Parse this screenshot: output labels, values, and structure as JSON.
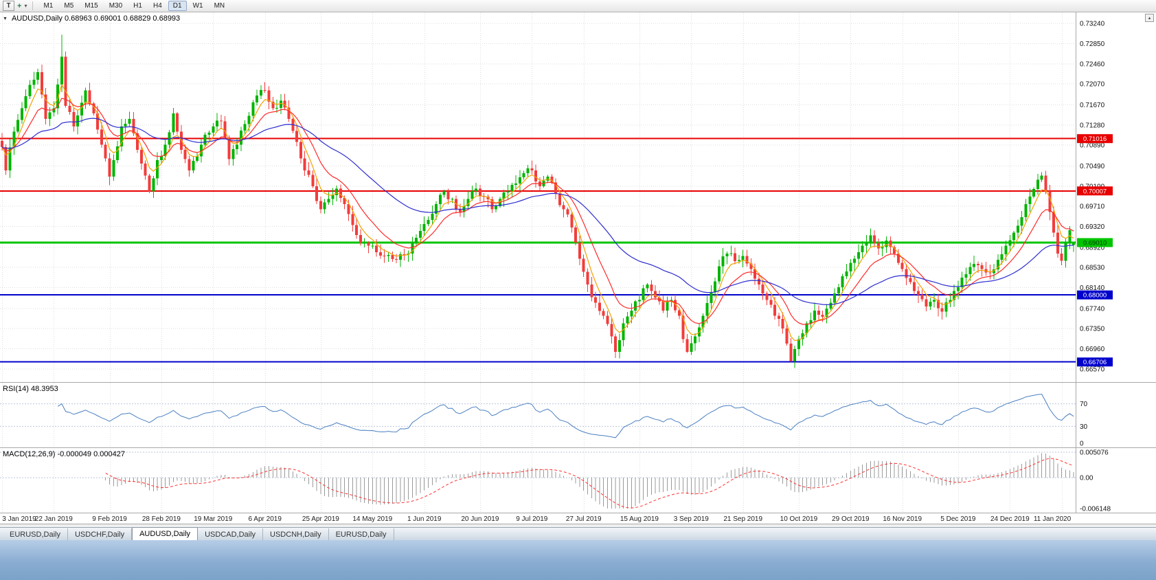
{
  "icons": {
    "collapse": "▼",
    "scroll_up": "▴",
    "caret_down": "▾",
    "crosshair": "+",
    "template": "T"
  },
  "toolbar": {
    "timeframes": [
      "M1",
      "M5",
      "M15",
      "M30",
      "H1",
      "H4",
      "D1",
      "W1",
      "MN"
    ],
    "active_timeframe": "D1"
  },
  "chart": {
    "symbol": "AUDUSD",
    "period": "Daily",
    "title": "AUDUSD,Daily 0.68963 0.69001 0.68829 0.68993"
  },
  "price_axis": {
    "ticks": [
      "0.73240",
      "0.72850",
      "0.72460",
      "0.72070",
      "0.71670",
      "0.71280",
      "0.70890",
      "0.70490",
      "0.70100",
      "0.69710",
      "0.69320",
      "0.68920",
      "0.68530",
      "0.68140",
      "0.67740",
      "0.67350",
      "0.66960",
      "0.66570"
    ]
  },
  "hlines": [
    {
      "price": 0.71016,
      "label": "0.71016",
      "color": "#e80000",
      "text_color": "#ffffff",
      "width": 2
    },
    {
      "price": 0.70007,
      "label": "0.70007",
      "color": "#e80000",
      "text_color": "#ffffff",
      "width": 2
    },
    {
      "price": 0.6901,
      "label": "0.69010",
      "color": "#00c400",
      "text_color": "#063306",
      "width": 3
    },
    {
      "price": 0.68,
      "label": "0.68000",
      "color": "#0000cc",
      "text_color": "#ffffff",
      "width": 2
    },
    {
      "price": 0.66706,
      "label": "0.66706",
      "color": "#0000cc",
      "text_color": "#ffffff",
      "width": 2
    }
  ],
  "indicators": {
    "rsi": {
      "label": "RSI(14) 48.3953",
      "period": 14,
      "value": 48.3953,
      "levels": [
        "70",
        "30",
        "0"
      ]
    },
    "macd": {
      "label": "MACD(12,26,9) -0.000049 0.000427",
      "fast": 12,
      "slow": 26,
      "signal": 9,
      "macd_value": -4.9e-05,
      "signal_value": 0.000427,
      "axis_labels": [
        "0.005076",
        "0.00",
        "-0.006148"
      ]
    }
  },
  "date_axis": {
    "labels": [
      "3 Jan 2019",
      "22 Jan 2019",
      "9 Feb 2019",
      "28 Feb 2019",
      "19 Mar 2019",
      "6 Apr 2019",
      "25 Apr 2019",
      "14 May 2019",
      "1 Jun 2019",
      "20 Jun 2019",
      "9 Jul 2019",
      "27 Jul 2019",
      "15 Aug 2019",
      "3 Sep 2019",
      "21 Sep 2019",
      "10 Oct 2019",
      "29 Oct 2019",
      "16 Nov 2019",
      "5 Dec 2019",
      "24 Dec 2019",
      "11 Jan 2020"
    ]
  },
  "tabs": {
    "items": [
      "EURUSD,Daily",
      "USDCHF,Daily",
      "AUDUSD,Daily",
      "USDCAD,Daily",
      "USDCNH,Daily",
      "EURUSD,Daily"
    ],
    "active_index": 2
  },
  "chart_data": {
    "type": "candlestick",
    "symbol": "AUDUSD",
    "timeframe": "Daily",
    "title": "AUDUSD,Daily",
    "num_candles": 270,
    "price_scale": {
      "top": 0.7324,
      "bottom": 0.6657
    },
    "macd_scale": {
      "max": 0.005076,
      "min": -0.006148
    },
    "x_tick_indices": [
      0,
      13,
      27,
      40,
      53,
      66,
      80,
      93,
      106,
      120,
      133,
      146,
      160,
      173,
      186,
      200,
      213,
      226,
      240,
      253,
      266
    ],
    "close_keypoints": [
      [
        0,
        0.7085
      ],
      [
        1,
        0.704
      ],
      [
        3,
        0.7115
      ],
      [
        5,
        0.716
      ],
      [
        7,
        0.7205
      ],
      [
        9,
        0.723
      ],
      [
        11,
        0.714
      ],
      [
        13,
        0.716
      ],
      [
        15,
        0.726
      ],
      [
        16,
        0.7165
      ],
      [
        18,
        0.7125
      ],
      [
        21,
        0.7195
      ],
      [
        23,
        0.715
      ],
      [
        25,
        0.709
      ],
      [
        27,
        0.7028
      ],
      [
        28,
        0.706
      ],
      [
        30,
        0.7125
      ],
      [
        32,
        0.714
      ],
      [
        34,
        0.708
      ],
      [
        36,
        0.703
      ],
      [
        37,
        0.7
      ],
      [
        39,
        0.706
      ],
      [
        41,
        0.709
      ],
      [
        43,
        0.715
      ],
      [
        45,
        0.708
      ],
      [
        47,
        0.704
      ],
      [
        50,
        0.709
      ],
      [
        53,
        0.7125
      ],
      [
        55,
        0.7135
      ],
      [
        57,
        0.7062
      ],
      [
        59,
        0.709
      ],
      [
        61,
        0.713
      ],
      [
        64,
        0.7185
      ],
      [
        66,
        0.7195
      ],
      [
        68,
        0.716
      ],
      [
        70,
        0.7175
      ],
      [
        72,
        0.714
      ],
      [
        74,
        0.7095
      ],
      [
        76,
        0.704
      ],
      [
        78,
        0.701
      ],
      [
        80,
        0.6965
      ],
      [
        82,
        0.6985
      ],
      [
        84,
        0.7005
      ],
      [
        86,
        0.6975
      ],
      [
        88,
        0.6935
      ],
      [
        90,
        0.69
      ],
      [
        93,
        0.6895
      ],
      [
        96,
        0.6875
      ],
      [
        99,
        0.6868
      ],
      [
        102,
        0.688
      ],
      [
        104,
        0.691
      ],
      [
        107,
        0.6945
      ],
      [
        109,
        0.6975
      ],
      [
        111,
        0.7
      ],
      [
        113,
        0.6985
      ],
      [
        115,
        0.696
      ],
      [
        117,
        0.6985
      ],
      [
        119,
        0.7005
      ],
      [
        121,
        0.699
      ],
      [
        123,
        0.6965
      ],
      [
        125,
        0.6985
      ],
      [
        127,
        0.7
      ],
      [
        129,
        0.7015
      ],
      [
        131,
        0.7035
      ],
      [
        133,
        0.704
      ],
      [
        135,
        0.701
      ],
      [
        137,
        0.7028
      ],
      [
        139,
        0.6995
      ],
      [
        141,
        0.6965
      ],
      [
        143,
        0.693
      ],
      [
        145,
        0.687
      ],
      [
        147,
        0.682
      ],
      [
        149,
        0.6785
      ],
      [
        151,
        0.676
      ],
      [
        153,
        0.672
      ],
      [
        154,
        0.669
      ],
      [
        156,
        0.6745
      ],
      [
        158,
        0.677
      ],
      [
        160,
        0.679
      ],
      [
        162,
        0.682
      ],
      [
        164,
        0.6795
      ],
      [
        166,
        0.677
      ],
      [
        168,
        0.679
      ],
      [
        170,
        0.676
      ],
      [
        171,
        0.6715
      ],
      [
        172,
        0.669
      ],
      [
        174,
        0.672
      ],
      [
        176,
        0.676
      ],
      [
        178,
        0.6805
      ],
      [
        180,
        0.6855
      ],
      [
        182,
        0.688
      ],
      [
        184,
        0.6865
      ],
      [
        186,
        0.6875
      ],
      [
        188,
        0.685
      ],
      [
        190,
        0.682
      ],
      [
        192,
        0.679
      ],
      [
        194,
        0.676
      ],
      [
        196,
        0.6735
      ],
      [
        198,
        0.6672
      ],
      [
        200,
        0.6715
      ],
      [
        202,
        0.6745
      ],
      [
        204,
        0.677
      ],
      [
        206,
        0.6758
      ],
      [
        208,
        0.6785
      ],
      [
        210,
        0.6815
      ],
      [
        212,
        0.6845
      ],
      [
        214,
        0.687
      ],
      [
        216,
        0.6895
      ],
      [
        218,
        0.6915
      ],
      [
        220,
        0.689
      ],
      [
        222,
        0.6905
      ],
      [
        224,
        0.688
      ],
      [
        226,
        0.685
      ],
      [
        228,
        0.6825
      ],
      [
        230,
        0.68
      ],
      [
        232,
        0.6778
      ],
      [
        234,
        0.679
      ],
      [
        236,
        0.6768
      ],
      [
        238,
        0.679
      ],
      [
        240,
        0.6815
      ],
      [
        242,
        0.684
      ],
      [
        244,
        0.686
      ],
      [
        246,
        0.685
      ],
      [
        248,
        0.6842
      ],
      [
        250,
        0.6868
      ],
      [
        252,
        0.6895
      ],
      [
        254,
        0.692
      ],
      [
        256,
        0.695
      ],
      [
        258,
        0.699
      ],
      [
        260,
        0.7022
      ],
      [
        261,
        0.703
      ],
      [
        262,
        0.7
      ],
      [
        263,
        0.696
      ],
      [
        264,
        0.692
      ],
      [
        265,
        0.688
      ],
      [
        266,
        0.6866
      ],
      [
        267,
        0.69
      ],
      [
        268,
        0.6925
      ],
      [
        269,
        0.68993
      ]
    ],
    "wick_overrides": {
      "15": {
        "high": 0.7302
      },
      "99": {
        "low": 0.6861
      },
      "154": {
        "low": 0.6678
      },
      "172": {
        "low": 0.6688
      },
      "198": {
        "low": 0.66706
      },
      "261": {
        "high": 0.7037
      }
    },
    "last_candle": {
      "open": 0.68963,
      "high": 0.69001,
      "low": 0.68829,
      "close": 0.68993
    },
    "moving_averages": [
      {
        "name": "fast",
        "period": 5,
        "color": "#f2a200"
      },
      {
        "name": "medium",
        "period": 12,
        "color": "#ff2a2a"
      },
      {
        "name": "slow",
        "period": 40,
        "color": "#2d2dd0"
      }
    ],
    "colors": {
      "up": "#00b400",
      "down": "#f23c3c",
      "rsi": "#4a7fc1",
      "macd_hist": "#9a9a9a",
      "macd_signal": "#ff3030",
      "grid": "#dedede",
      "level": "#b9c5d9",
      "separator": "#a8a8a8"
    }
  }
}
